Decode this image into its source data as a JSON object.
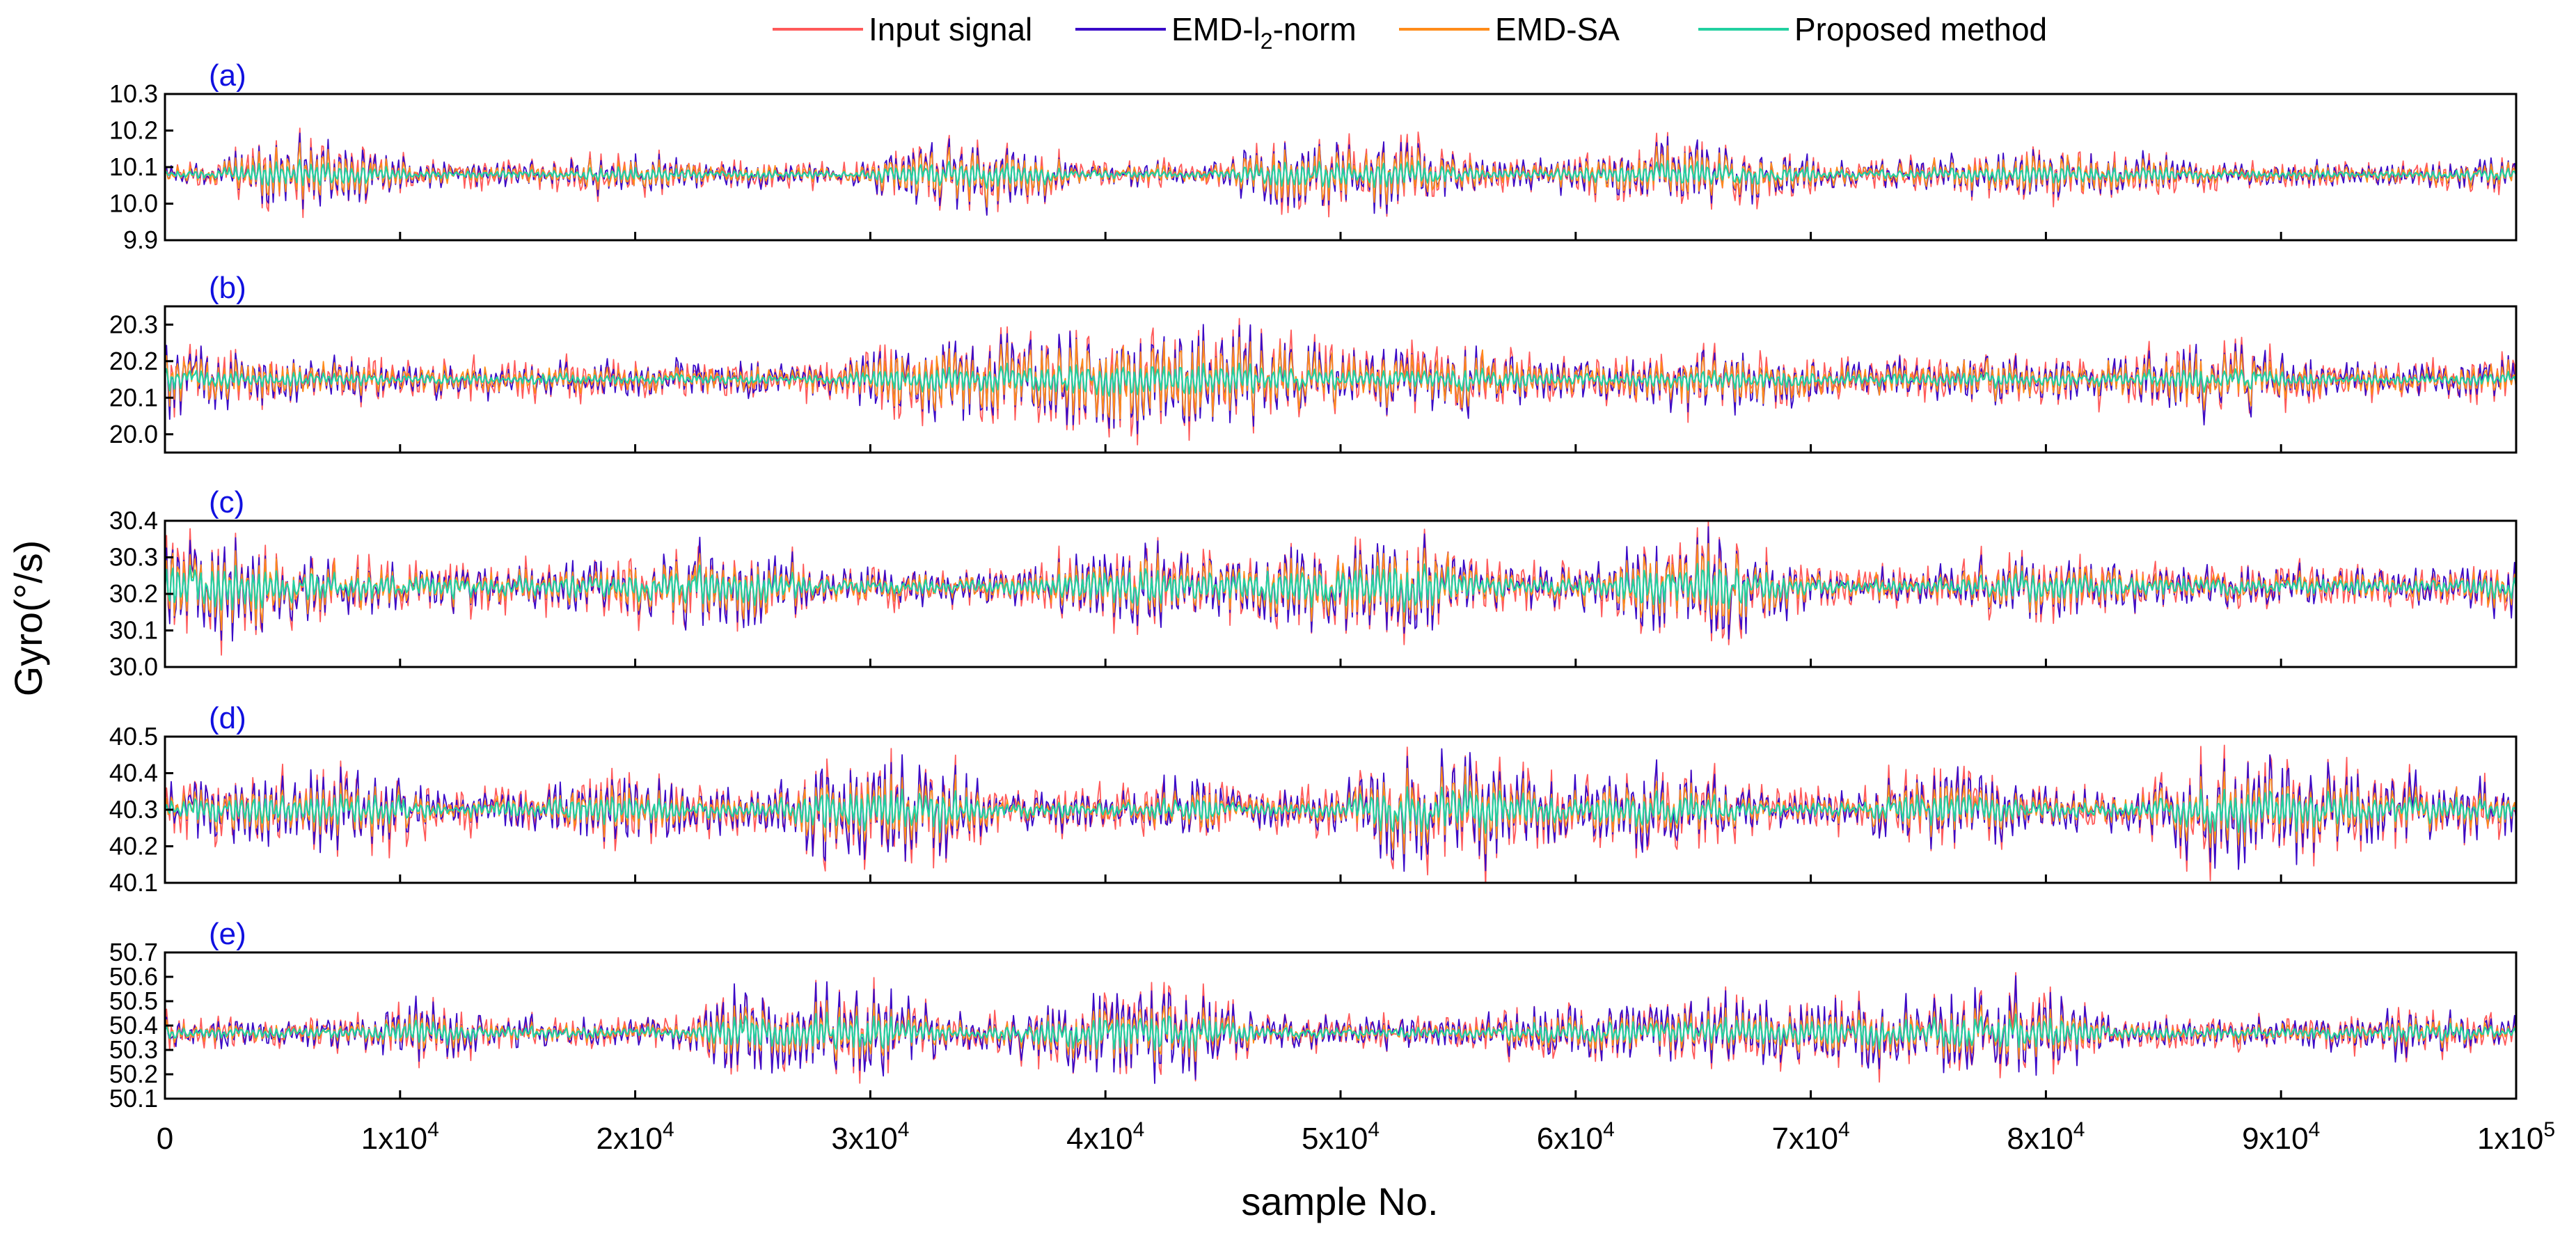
{
  "chart_data": {
    "type": "line",
    "xlabel": "sample No.",
    "ylabel": "Gyro(°/s)",
    "xlim": [
      0,
      100000
    ],
    "x_ticks": [
      {
        "value": 0,
        "base": "0",
        "exp": ""
      },
      {
        "value": 10000,
        "base": "1x10",
        "exp": "4"
      },
      {
        "value": 20000,
        "base": "2x10",
        "exp": "4"
      },
      {
        "value": 30000,
        "base": "3x10",
        "exp": "4"
      },
      {
        "value": 40000,
        "base": "4x10",
        "exp": "4"
      },
      {
        "value": 50000,
        "base": "5x10",
        "exp": "4"
      },
      {
        "value": 60000,
        "base": "6x10",
        "exp": "4"
      },
      {
        "value": 70000,
        "base": "7x10",
        "exp": "4"
      },
      {
        "value": 80000,
        "base": "8x10",
        "exp": "4"
      },
      {
        "value": 90000,
        "base": "9x10",
        "exp": "4"
      },
      {
        "value": 100000,
        "base": "1x10",
        "exp": "5"
      }
    ],
    "legend": [
      {
        "name": "Input signal",
        "pre": "Input signal",
        "sub": "",
        "post": "",
        "color": "#ff5a5a"
      },
      {
        "name": "EMD-l2-norm",
        "pre": "EMD-l",
        "sub": "2",
        "post": "-norm",
        "color": "#3a0ac8"
      },
      {
        "name": "EMD-SA",
        "pre": "EMD-SA",
        "sub": "",
        "post": "",
        "color": "#ff8c1a"
      },
      {
        "name": "Proposed method",
        "pre": "Proposed method",
        "sub": "",
        "post": "",
        "color": "#22d0a0"
      }
    ],
    "panel_label_color": "#1010e0",
    "panels": [
      {
        "label": "(a)",
        "ylim": [
          9.9,
          10.3
        ],
        "yticks": [
          "9.9",
          "10.0",
          "10.1",
          "10.2",
          "10.3"
        ],
        "mean": 10.08,
        "series_amplitude": {
          "Input signal": 0.12,
          "EMD-l2-norm": 0.11,
          "EMD-SA": 0.085,
          "Proposed method": 0.04
        }
      },
      {
        "label": "(b)",
        "ylim": [
          19.95,
          20.35
        ],
        "yticks": [
          "20.0",
          "20.1",
          "20.2",
          "20.3"
        ],
        "mean": 20.15,
        "series_amplitude": {
          "Input signal": 0.17,
          "EMD-l2-norm": 0.16,
          "EMD-SA": 0.13,
          "Proposed method": 0.05
        }
      },
      {
        "label": "(c)",
        "ylim": [
          30.0,
          30.4
        ],
        "yticks": [
          "30.0",
          "30.1",
          "30.2",
          "30.3",
          "30.4"
        ],
        "mean": 30.22,
        "series_amplitude": {
          "Input signal": 0.17,
          "EMD-l2-norm": 0.16,
          "EMD-SA": 0.12,
          "Proposed method": 0.07
        }
      },
      {
        "label": "(d)",
        "ylim": [
          40.1,
          40.5
        ],
        "yticks": [
          "40.1",
          "40.2",
          "40.3",
          "40.4",
          "40.5"
        ],
        "mean": 40.3,
        "series_amplitude": {
          "Input signal": 0.19,
          "EMD-l2-norm": 0.18,
          "EMD-SA": 0.12,
          "Proposed method": 0.07
        }
      },
      {
        "label": "(e)",
        "ylim": [
          50.1,
          50.7
        ],
        "yticks": [
          "50.1",
          "50.2",
          "50.3",
          "50.4",
          "50.5",
          "50.6",
          "50.7"
        ],
        "mean": 50.37,
        "series_amplitude": {
          "Input signal": 0.22,
          "EMD-l2-norm": 0.21,
          "EMD-SA": 0.13,
          "Proposed method": 0.08
        }
      }
    ]
  }
}
